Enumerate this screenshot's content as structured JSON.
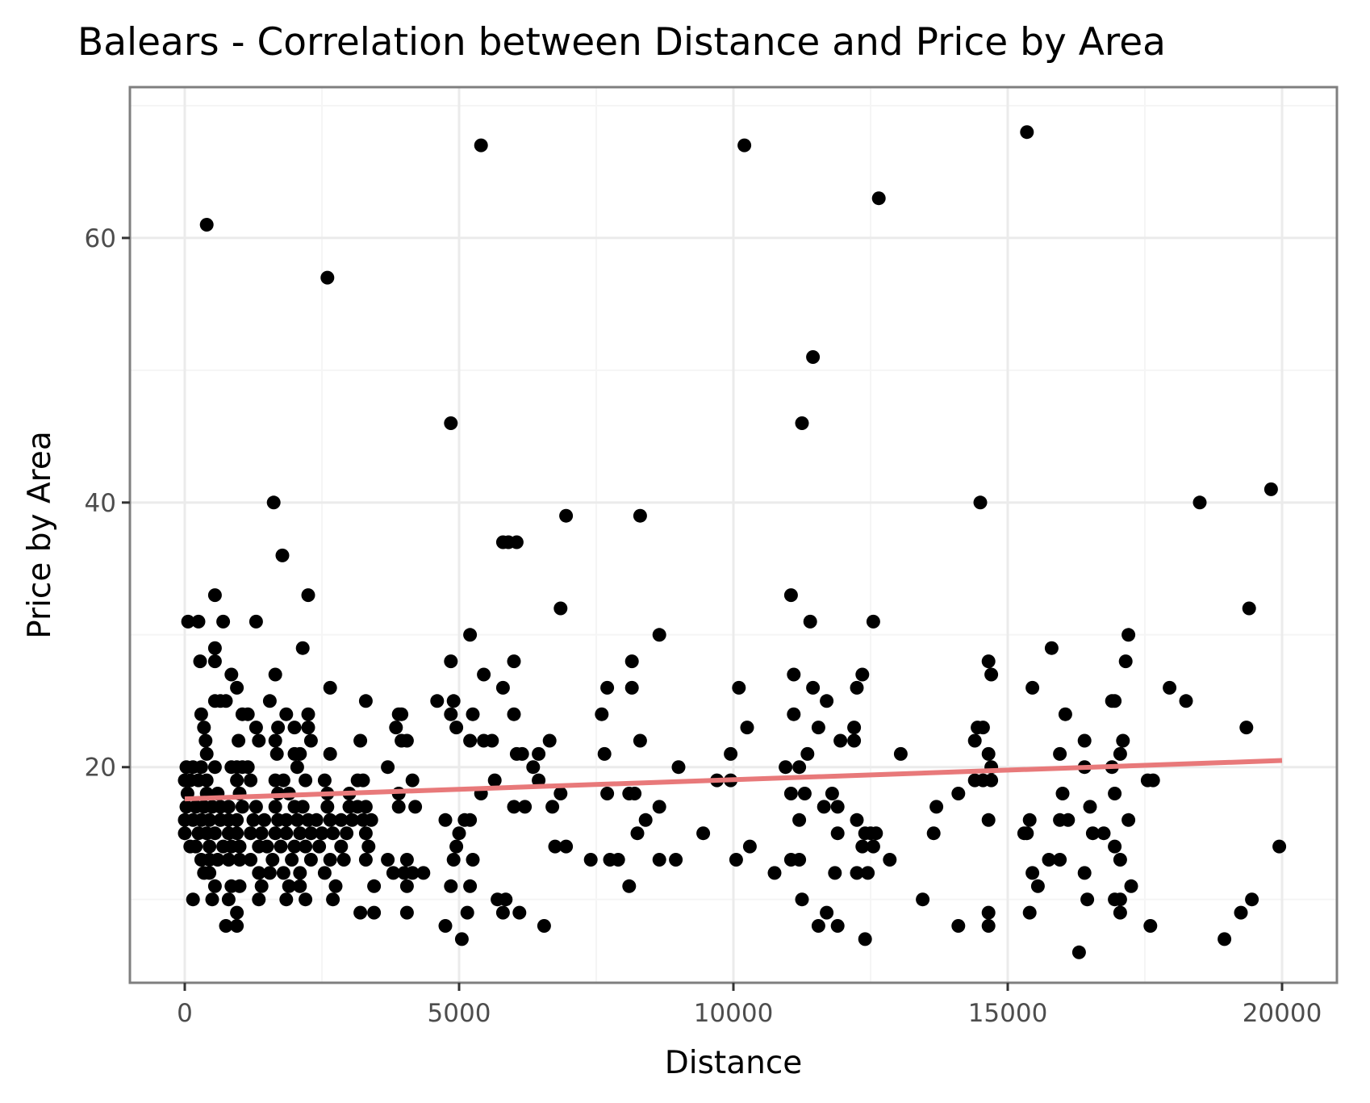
{
  "chart_data": {
    "type": "scatter",
    "title": "Balears - Correlation between Distance and Price by Area",
    "xlabel": "Distance",
    "ylabel": "Price by Area",
    "xlim": [
      -1000,
      21000
    ],
    "ylim": [
      3.7,
      71.4
    ],
    "x_ticks": [
      0,
      5000,
      10000,
      15000,
      20000
    ],
    "x_tick_labels": [
      "0",
      "5000",
      "10000",
      "15000",
      "20000"
    ],
    "y_ticks": [
      20,
      40,
      60
    ],
    "y_tick_labels": [
      "20",
      "40",
      "60"
    ],
    "grid": true,
    "legend": "none",
    "colors": {
      "points": "#000000",
      "trend": "#e8797a",
      "frame": "#7f7f7f",
      "grid_major": "#ebebeb",
      "grid_minor": "#f5f5f5"
    },
    "trend_line": {
      "type": "linear",
      "x": [
        0,
        20000
      ],
      "y": [
        17.6,
        20.5
      ]
    },
    "points": [
      [
        60,
        31
      ],
      [
        250,
        31
      ],
      [
        400,
        61
      ],
      [
        2600,
        57
      ],
      [
        5400,
        67
      ],
      [
        10200,
        67
      ],
      [
        15350,
        68
      ],
      [
        12650,
        63
      ],
      [
        11450,
        51
      ],
      [
        4850,
        46
      ],
      [
        11250,
        46
      ],
      [
        1620,
        40
      ],
      [
        14500,
        40
      ],
      [
        18500,
        40
      ],
      [
        19800,
        41
      ],
      [
        6950,
        39
      ],
      [
        8300,
        39
      ],
      [
        1780,
        36
      ],
      [
        5800,
        37
      ],
      [
        5900,
        37
      ],
      [
        6050,
        37
      ],
      [
        550,
        33
      ],
      [
        2250,
        33
      ],
      [
        11050,
        33
      ],
      [
        6850,
        32
      ],
      [
        19400,
        32
      ],
      [
        700,
        31
      ],
      [
        1300,
        31
      ],
      [
        11400,
        31
      ],
      [
        12550,
        31
      ],
      [
        5200,
        30
      ],
      [
        8650,
        30
      ],
      [
        17200,
        30
      ],
      [
        550,
        29
      ],
      [
        2150,
        29
      ],
      [
        15800,
        29
      ],
      [
        280,
        28
      ],
      [
        550,
        28
      ],
      [
        4850,
        28
      ],
      [
        6000,
        28
      ],
      [
        8150,
        28
      ],
      [
        14650,
        28
      ],
      [
        17150,
        28
      ],
      [
        850,
        27
      ],
      [
        1650,
        27
      ],
      [
        5450,
        27
      ],
      [
        11100,
        27
      ],
      [
        12350,
        27
      ],
      [
        14700,
        27
      ],
      [
        950,
        26
      ],
      [
        2650,
        26
      ],
      [
        5800,
        26
      ],
      [
        7700,
        26
      ],
      [
        8150,
        26
      ],
      [
        10100,
        26
      ],
      [
        11450,
        26
      ],
      [
        12250,
        26
      ],
      [
        15450,
        26
      ],
      [
        17950,
        26
      ],
      [
        550,
        25
      ],
      [
        650,
        25
      ],
      [
        750,
        25
      ],
      [
        1550,
        25
      ],
      [
        3300,
        25
      ],
      [
        4600,
        25
      ],
      [
        4900,
        25
      ],
      [
        11700,
        25
      ],
      [
        16900,
        25
      ],
      [
        16950,
        25
      ],
      [
        18250,
        25
      ],
      [
        300,
        24
      ],
      [
        1050,
        24
      ],
      [
        1150,
        24
      ],
      [
        1850,
        24
      ],
      [
        2250,
        24
      ],
      [
        3900,
        24
      ],
      [
        3950,
        24
      ],
      [
        4850,
        24
      ],
      [
        5250,
        24
      ],
      [
        6000,
        24
      ],
      [
        7600,
        24
      ],
      [
        11100,
        24
      ],
      [
        16050,
        24
      ],
      [
        350,
        23
      ],
      [
        1300,
        23
      ],
      [
        1700,
        23
      ],
      [
        2000,
        23
      ],
      [
        2250,
        23
      ],
      [
        3850,
        23
      ],
      [
        4950,
        23
      ],
      [
        10250,
        23
      ],
      [
        11550,
        23
      ],
      [
        12200,
        23
      ],
      [
        14450,
        23
      ],
      [
        14550,
        23
      ],
      [
        19350,
        23
      ],
      [
        380,
        22
      ],
      [
        980,
        22
      ],
      [
        1350,
        22
      ],
      [
        1650,
        22
      ],
      [
        2300,
        22
      ],
      [
        3200,
        22
      ],
      [
        3950,
        22
      ],
      [
        4050,
        22
      ],
      [
        5200,
        22
      ],
      [
        5450,
        22
      ],
      [
        5600,
        22
      ],
      [
        6650,
        22
      ],
      [
        8300,
        22
      ],
      [
        11950,
        22
      ],
      [
        12200,
        22
      ],
      [
        14400,
        22
      ],
      [
        16400,
        22
      ],
      [
        17100,
        22
      ],
      [
        400,
        21
      ],
      [
        1680,
        21
      ],
      [
        2000,
        21
      ],
      [
        2100,
        21
      ],
      [
        2650,
        21
      ],
      [
        6050,
        21
      ],
      [
        6150,
        21
      ],
      [
        6450,
        21
      ],
      [
        7650,
        21
      ],
      [
        9950,
        21
      ],
      [
        11350,
        21
      ],
      [
        13050,
        21
      ],
      [
        14650,
        21
      ],
      [
        15950,
        21
      ],
      [
        17050,
        21
      ],
      [
        30,
        20
      ],
      [
        150,
        20
      ],
      [
        300,
        20
      ],
      [
        550,
        20
      ],
      [
        850,
        20
      ],
      [
        950,
        20
      ],
      [
        1050,
        20
      ],
      [
        1150,
        20
      ],
      [
        2050,
        20
      ],
      [
        3700,
        20
      ],
      [
        6350,
        20
      ],
      [
        9000,
        20
      ],
      [
        10950,
        20
      ],
      [
        11200,
        20
      ],
      [
        14700,
        20
      ],
      [
        16400,
        20
      ],
      [
        16900,
        20
      ],
      [
        0,
        19
      ],
      [
        100,
        19
      ],
      [
        250,
        19
      ],
      [
        400,
        19
      ],
      [
        950,
        19
      ],
      [
        1200,
        19
      ],
      [
        1650,
        19
      ],
      [
        1800,
        19
      ],
      [
        2200,
        19
      ],
      [
        2550,
        19
      ],
      [
        3150,
        19
      ],
      [
        3250,
        19
      ],
      [
        4150,
        19
      ],
      [
        5650,
        19
      ],
      [
        6450,
        19
      ],
      [
        9700,
        19
      ],
      [
        9950,
        19
      ],
      [
        14400,
        19
      ],
      [
        14550,
        19
      ],
      [
        14700,
        19
      ],
      [
        17550,
        19
      ],
      [
        17650,
        19
      ],
      [
        50,
        18
      ],
      [
        400,
        18
      ],
      [
        600,
        18
      ],
      [
        1000,
        18
      ],
      [
        1700,
        18
      ],
      [
        1900,
        18
      ],
      [
        2600,
        18
      ],
      [
        3000,
        18
      ],
      [
        3900,
        18
      ],
      [
        5400,
        18
      ],
      [
        6850,
        18
      ],
      [
        7700,
        18
      ],
      [
        8100,
        18
      ],
      [
        8200,
        18
      ],
      [
        11050,
        18
      ],
      [
        11300,
        18
      ],
      [
        11800,
        18
      ],
      [
        14100,
        18
      ],
      [
        16000,
        18
      ],
      [
        16950,
        18
      ],
      [
        30,
        17
      ],
      [
        200,
        17
      ],
      [
        350,
        17
      ],
      [
        500,
        17
      ],
      [
        650,
        17
      ],
      [
        800,
        17
      ],
      [
        1050,
        17
      ],
      [
        1300,
        17
      ],
      [
        1650,
        17
      ],
      [
        2000,
        17
      ],
      [
        2150,
        17
      ],
      [
        2600,
        17
      ],
      [
        3000,
        17
      ],
      [
        3150,
        17
      ],
      [
        3300,
        17
      ],
      [
        3900,
        17
      ],
      [
        4200,
        17
      ],
      [
        6000,
        17
      ],
      [
        6200,
        17
      ],
      [
        6700,
        17
      ],
      [
        8650,
        17
      ],
      [
        11650,
        17
      ],
      [
        11900,
        17
      ],
      [
        13700,
        17
      ],
      [
        16500,
        17
      ],
      [
        0,
        16
      ],
      [
        150,
        16
      ],
      [
        300,
        16
      ],
      [
        450,
        16
      ],
      [
        650,
        16
      ],
      [
        800,
        16
      ],
      [
        950,
        16
      ],
      [
        1250,
        16
      ],
      [
        1450,
        16
      ],
      [
        1700,
        16
      ],
      [
        1850,
        16
      ],
      [
        2050,
        16
      ],
      [
        2250,
        16
      ],
      [
        2400,
        16
      ],
      [
        2650,
        16
      ],
      [
        2850,
        16
      ],
      [
        3050,
        16
      ],
      [
        3250,
        16
      ],
      [
        3400,
        16
      ],
      [
        4750,
        16
      ],
      [
        5100,
        16
      ],
      [
        5200,
        16
      ],
      [
        8400,
        16
      ],
      [
        11200,
        16
      ],
      [
        12250,
        16
      ],
      [
        14650,
        16
      ],
      [
        15400,
        16
      ],
      [
        15950,
        16
      ],
      [
        16100,
        16
      ],
      [
        17200,
        16
      ],
      [
        0,
        15
      ],
      [
        250,
        15
      ],
      [
        400,
        15
      ],
      [
        550,
        15
      ],
      [
        800,
        15
      ],
      [
        950,
        15
      ],
      [
        1200,
        15
      ],
      [
        1400,
        15
      ],
      [
        1650,
        15
      ],
      [
        1850,
        15
      ],
      [
        2100,
        15
      ],
      [
        2300,
        15
      ],
      [
        2500,
        15
      ],
      [
        2700,
        15
      ],
      [
        2950,
        15
      ],
      [
        3300,
        15
      ],
      [
        5000,
        15
      ],
      [
        8250,
        15
      ],
      [
        9450,
        15
      ],
      [
        11900,
        15
      ],
      [
        12400,
        15
      ],
      [
        12500,
        15
      ],
      [
        12600,
        15
      ],
      [
        13650,
        15
      ],
      [
        15300,
        15
      ],
      [
        15350,
        15
      ],
      [
        16550,
        15
      ],
      [
        16750,
        15
      ],
      [
        100,
        14
      ],
      [
        200,
        14
      ],
      [
        450,
        14
      ],
      [
        700,
        14
      ],
      [
        850,
        14
      ],
      [
        1000,
        14
      ],
      [
        1350,
        14
      ],
      [
        1500,
        14
      ],
      [
        1750,
        14
      ],
      [
        2000,
        14
      ],
      [
        2200,
        14
      ],
      [
        2450,
        14
      ],
      [
        2850,
        14
      ],
      [
        3350,
        14
      ],
      [
        4950,
        14
      ],
      [
        6750,
        14
      ],
      [
        6950,
        14
      ],
      [
        10300,
        14
      ],
      [
        12350,
        14
      ],
      [
        12550,
        14
      ],
      [
        16950,
        14
      ],
      [
        19950,
        14
      ],
      [
        300,
        13
      ],
      [
        450,
        13
      ],
      [
        600,
        13
      ],
      [
        800,
        13
      ],
      [
        1000,
        13
      ],
      [
        1200,
        13
      ],
      [
        1600,
        13
      ],
      [
        1950,
        13
      ],
      [
        2300,
        13
      ],
      [
        2650,
        13
      ],
      [
        2900,
        13
      ],
      [
        3300,
        13
      ],
      [
        3700,
        13
      ],
      [
        4050,
        13
      ],
      [
        4900,
        13
      ],
      [
        5250,
        13
      ],
      [
        7400,
        13
      ],
      [
        7750,
        13
      ],
      [
        7900,
        13
      ],
      [
        8650,
        13
      ],
      [
        8950,
        13
      ],
      [
        10050,
        13
      ],
      [
        11050,
        13
      ],
      [
        11200,
        13
      ],
      [
        12850,
        13
      ],
      [
        15750,
        13
      ],
      [
        15950,
        13
      ],
      [
        17050,
        13
      ],
      [
        350,
        12
      ],
      [
        450,
        12
      ],
      [
        1350,
        12
      ],
      [
        1550,
        12
      ],
      [
        1800,
        12
      ],
      [
        2100,
        12
      ],
      [
        2550,
        12
      ],
      [
        3800,
        12
      ],
      [
        4000,
        12
      ],
      [
        4150,
        12
      ],
      [
        4350,
        12
      ],
      [
        10750,
        12
      ],
      [
        11850,
        12
      ],
      [
        12250,
        12
      ],
      [
        12450,
        12
      ],
      [
        15450,
        12
      ],
      [
        16400,
        12
      ],
      [
        550,
        11
      ],
      [
        850,
        11
      ],
      [
        1000,
        11
      ],
      [
        1400,
        11
      ],
      [
        1900,
        11
      ],
      [
        2100,
        11
      ],
      [
        2750,
        11
      ],
      [
        3450,
        11
      ],
      [
        4050,
        11
      ],
      [
        4850,
        11
      ],
      [
        5200,
        11
      ],
      [
        8100,
        11
      ],
      [
        15550,
        11
      ],
      [
        17250,
        11
      ],
      [
        150,
        10
      ],
      [
        500,
        10
      ],
      [
        800,
        10
      ],
      [
        1350,
        10
      ],
      [
        1850,
        10
      ],
      [
        2200,
        10
      ],
      [
        2700,
        10
      ],
      [
        5700,
        10
      ],
      [
        5850,
        10
      ],
      [
        11250,
        10
      ],
      [
        13450,
        10
      ],
      [
        16450,
        10
      ],
      [
        16950,
        10
      ],
      [
        17050,
        10
      ],
      [
        19450,
        10
      ],
      [
        950,
        9
      ],
      [
        3200,
        9
      ],
      [
        3450,
        9
      ],
      [
        4050,
        9
      ],
      [
        5150,
        9
      ],
      [
        5800,
        9
      ],
      [
        6100,
        9
      ],
      [
        11700,
        9
      ],
      [
        14650,
        9
      ],
      [
        15400,
        9
      ],
      [
        17050,
        9
      ],
      [
        19250,
        9
      ],
      [
        750,
        8
      ],
      [
        950,
        8
      ],
      [
        4750,
        8
      ],
      [
        6550,
        8
      ],
      [
        11550,
        8
      ],
      [
        11900,
        8
      ],
      [
        14100,
        8
      ],
      [
        14650,
        8
      ],
      [
        17600,
        8
      ],
      [
        5050,
        7
      ],
      [
        12400,
        7
      ],
      [
        18950,
        7
      ],
      [
        16300,
        6
      ]
    ]
  }
}
